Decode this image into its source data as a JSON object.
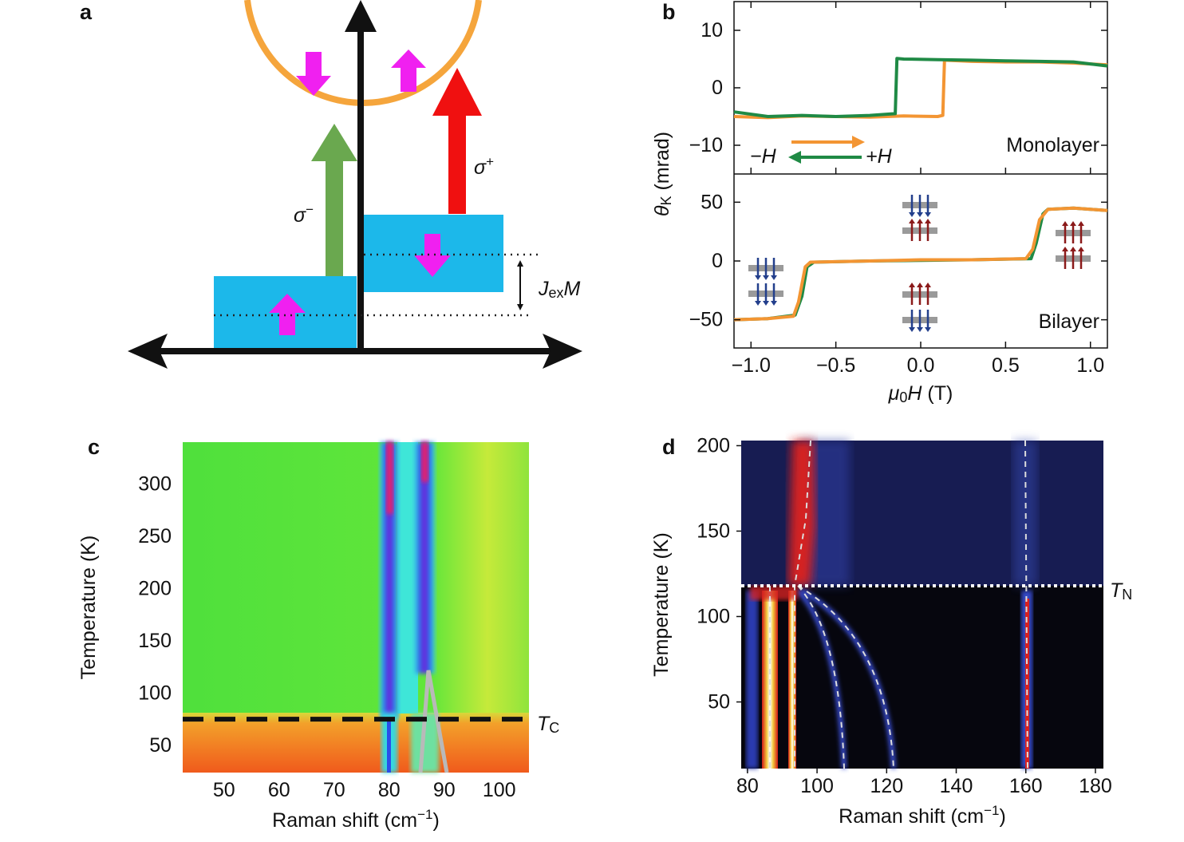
{
  "diagram": {
    "panel_label": "a",
    "sigma_minus": {
      "symbol": "σ",
      "sup": "−"
    },
    "sigma_plus": {
      "symbol": "σ",
      "sup": "+"
    },
    "exchange": {
      "symbol": "J",
      "sub": "ex",
      "suffix": "M"
    }
  },
  "chart_data": [
    {
      "type": "line",
      "panel_label": "b",
      "annotation": "Monolayer",
      "sweep_labels": [
        "−H",
        "+H"
      ],
      "xlim": [
        -1.1,
        1.1
      ],
      "ylim": [
        -15,
        15
      ],
      "yticks": [
        {
          "value": -10,
          "label": "−10"
        },
        0,
        10
      ],
      "series": [
        {
          "color": "#f39533",
          "x": [
            -1.1,
            -0.9,
            -0.7,
            -0.5,
            -0.3,
            -0.1,
            0.1,
            0.13,
            0.14,
            0.3,
            0.5,
            0.7,
            0.9,
            1.1
          ],
          "values": [
            -5,
            -5.2,
            -4.9,
            -5,
            -5.1,
            -4.9,
            -5,
            -4.8,
            4.8,
            4.6,
            4.5,
            4.5,
            4.3,
            4
          ]
        },
        {
          "color": "#1f8a45",
          "x": [
            1.1,
            0.9,
            0.7,
            0.5,
            0.3,
            0.1,
            -0.1,
            -0.14,
            -0.15,
            -0.3,
            -0.5,
            -0.7,
            -0.9,
            -1.1
          ],
          "values": [
            3.8,
            4.5,
            4.6,
            4.7,
            4.8,
            4.9,
            5,
            5.1,
            -4.5,
            -4.8,
            -5,
            -4.8,
            -5,
            -4.2
          ]
        }
      ]
    },
    {
      "type": "line",
      "annotation": "Bilayer",
      "ylabel": {
        "symbol": "θ",
        "sub": "K",
        "unit": " (mrad)"
      },
      "xlabel": {
        "symbol": "μ",
        "sub": "0",
        "suffix": "H",
        "unit": " (T)"
      },
      "xlim": [
        -1.1,
        1.1
      ],
      "ylim": [
        -74,
        74
      ],
      "xticks": [
        {
          "value": -1,
          "label": "−1.0"
        },
        {
          "value": -0.5,
          "label": "−0.5"
        },
        {
          "value": 0,
          "label": "0.0"
        },
        0.5,
        {
          "value": 1,
          "label": "1.0"
        }
      ],
      "yticks": [
        {
          "value": -50,
          "label": "−50"
        },
        0,
        50
      ],
      "series": [
        {
          "color": "#1f8a45",
          "x": [
            1.1,
            0.9,
            0.75,
            0.72,
            0.68,
            0.65,
            0.3,
            0,
            -0.3,
            -0.63,
            -0.67,
            -0.7,
            -0.74,
            -0.9,
            -1.1
          ],
          "values": [
            43,
            45,
            44,
            40,
            15,
            2,
            1,
            0.5,
            0,
            -1,
            -5,
            -30,
            -46,
            -49,
            -50
          ]
        },
        {
          "color": "#f39533",
          "x": [
            -1.1,
            -0.9,
            -0.75,
            -0.72,
            -0.68,
            -0.65,
            -0.3,
            0,
            0.3,
            0.62,
            0.66,
            0.7,
            0.75,
            0.9,
            1.1
          ],
          "values": [
            -50,
            -49,
            -47,
            -35,
            -5,
            -1,
            0,
            1,
            1,
            2,
            10,
            35,
            44,
            45,
            43
          ]
        }
      ]
    },
    {
      "type": "heatmap",
      "panel_label": "c",
      "xlabel": {
        "text": "Raman shift (cm",
        "sup": "−1",
        "unit": ")"
      },
      "ylabel": {
        "text": "Temperature (K)"
      },
      "xlim": [
        42.5,
        105.4
      ],
      "ylim": [
        24,
        340
      ],
      "xticks": [
        50,
        60,
        70,
        80,
        90,
        100
      ],
      "yticks": [
        50,
        100,
        150,
        200,
        250,
        300
      ],
      "threshold": {
        "value": 75,
        "label": {
          "symbol": "T",
          "sub": "C"
        }
      }
    },
    {
      "type": "heatmap",
      "panel_label": "d",
      "xlabel": {
        "text": "Raman shift (cm",
        "sup": "−1",
        "unit": ")"
      },
      "ylabel": {
        "text": "Temperature (K)"
      },
      "xlim": [
        78.2,
        182.3
      ],
      "ylim": [
        11,
        203
      ],
      "xticks": [
        80,
        100,
        120,
        140,
        160,
        180
      ],
      "yticks": [
        50,
        100,
        150,
        200
      ],
      "threshold": {
        "value": 118,
        "label": {
          "symbol": "T",
          "sub": "N"
        }
      }
    }
  ]
}
